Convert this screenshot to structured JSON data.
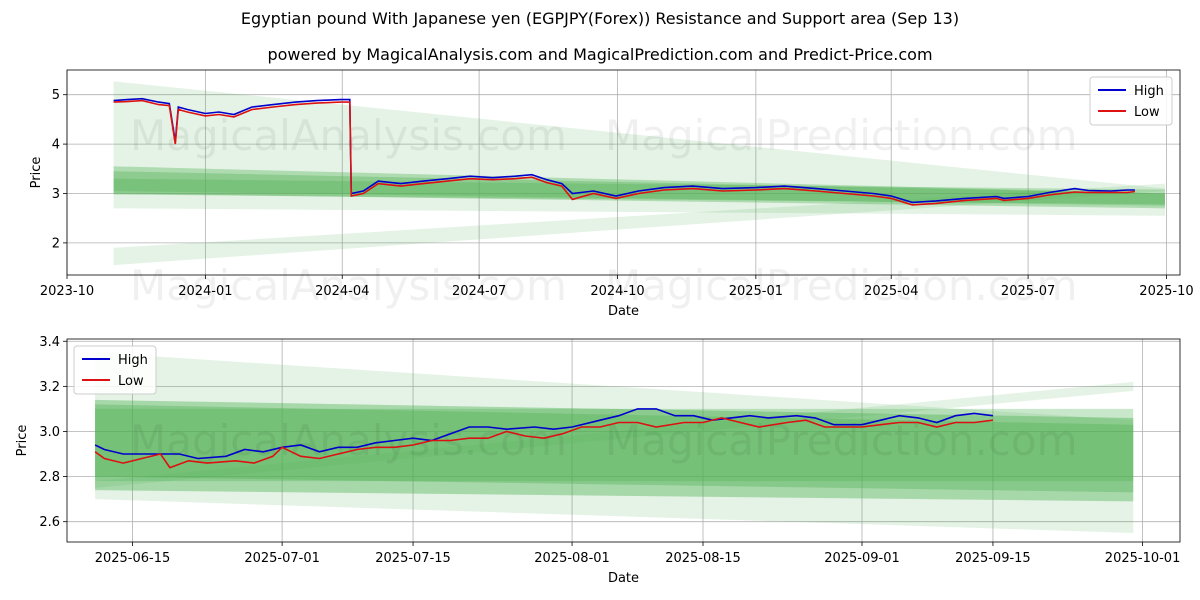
{
  "title": "Egyptian pound With Japanese yen (EGPJPY(Forex)) Resistance and Support area (Sep 13)",
  "subtitle": "powered by MagicalAnalysis.com and MagicalPrediction.com and Predict-Price.com",
  "watermarks": [
    "MagicalAnalysis.com",
    "MagicalPrediction.com"
  ],
  "colors": {
    "high": "#0000cc",
    "low": "#dd1111",
    "band": "#4caf50",
    "grid": "#b0b0b0"
  },
  "chart_data": [
    {
      "type": "line",
      "xlabel": "Date",
      "ylabel": "Price",
      "xlim": [
        "2023-10-01",
        "2025-10-10"
      ],
      "ylim": [
        1.35,
        5.5
      ],
      "xticks": [
        "2023-10",
        "2024-01",
        "2024-04",
        "2024-07",
        "2024-10",
        "2025-01",
        "2025-04",
        "2025-07",
        "2025-10"
      ],
      "yticks": [
        2,
        3,
        4,
        5
      ],
      "grid": true,
      "legend": "top-right",
      "series": [
        {
          "name": "High",
          "points": [
            [
              "2023-11-01",
              4.88
            ],
            [
              "2023-11-10",
              4.9
            ],
            [
              "2023-11-20",
              4.92
            ],
            [
              "2023-12-01",
              4.85
            ],
            [
              "2023-12-08",
              4.82
            ],
            [
              "2023-12-12",
              4.05
            ],
            [
              "2023-12-14",
              4.75
            ],
            [
              "2023-12-20",
              4.7
            ],
            [
              "2024-01-01",
              4.62
            ],
            [
              "2024-01-10",
              4.65
            ],
            [
              "2024-01-20",
              4.6
            ],
            [
              "2024-02-01",
              4.75
            ],
            [
              "2024-02-15",
              4.8
            ],
            [
              "2024-03-01",
              4.85
            ],
            [
              "2024-03-15",
              4.88
            ],
            [
              "2024-03-31",
              4.9
            ],
            [
              "2024-04-06",
              4.9
            ],
            [
              "2024-04-07",
              3.0
            ],
            [
              "2024-04-15",
              3.05
            ],
            [
              "2024-04-25",
              3.25
            ],
            [
              "2024-05-10",
              3.2
            ],
            [
              "2024-05-25",
              3.25
            ],
            [
              "2024-06-10",
              3.3
            ],
            [
              "2024-06-25",
              3.35
            ],
            [
              "2024-07-10",
              3.32
            ],
            [
              "2024-07-25",
              3.35
            ],
            [
              "2024-08-05",
              3.38
            ],
            [
              "2024-08-15",
              3.28
            ],
            [
              "2024-08-25",
              3.2
            ],
            [
              "2024-09-01",
              3.0
            ],
            [
              "2024-09-15",
              3.05
            ],
            [
              "2024-09-30",
              2.95
            ],
            [
              "2024-10-15",
              3.05
            ],
            [
              "2024-11-01",
              3.12
            ],
            [
              "2024-11-20",
              3.15
            ],
            [
              "2024-12-10",
              3.1
            ],
            [
              "2025-01-01",
              3.12
            ],
            [
              "2025-01-20",
              3.15
            ],
            [
              "2025-02-10",
              3.1
            ],
            [
              "2025-03-01",
              3.05
            ],
            [
              "2025-03-20",
              3.0
            ],
            [
              "2025-04-01",
              2.95
            ],
            [
              "2025-04-15",
              2.82
            ],
            [
              "2025-05-01",
              2.85
            ],
            [
              "2025-05-20",
              2.9
            ],
            [
              "2025-06-10",
              2.94
            ],
            [
              "2025-06-15",
              2.9
            ],
            [
              "2025-07-01",
              2.94
            ],
            [
              "2025-07-15",
              3.02
            ],
            [
              "2025-08-01",
              3.1
            ],
            [
              "2025-08-10",
              3.06
            ],
            [
              "2025-08-25",
              3.05
            ],
            [
              "2025-09-05",
              3.07
            ],
            [
              "2025-09-10",
              3.07
            ]
          ]
        },
        {
          "name": "Low",
          "points": [
            [
              "2023-11-01",
              4.85
            ],
            [
              "2023-11-10",
              4.86
            ],
            [
              "2023-11-20",
              4.88
            ],
            [
              "2023-12-01",
              4.8
            ],
            [
              "2023-12-08",
              4.78
            ],
            [
              "2023-12-12",
              4.0
            ],
            [
              "2023-12-14",
              4.7
            ],
            [
              "2023-12-20",
              4.65
            ],
            [
              "2024-01-01",
              4.57
            ],
            [
              "2024-01-10",
              4.6
            ],
            [
              "2024-01-20",
              4.55
            ],
            [
              "2024-02-01",
              4.7
            ],
            [
              "2024-02-15",
              4.75
            ],
            [
              "2024-03-01",
              4.8
            ],
            [
              "2024-03-15",
              4.83
            ],
            [
              "2024-03-31",
              4.85
            ],
            [
              "2024-04-06",
              4.85
            ],
            [
              "2024-04-07",
              2.95
            ],
            [
              "2024-04-15",
              3.0
            ],
            [
              "2024-04-25",
              3.2
            ],
            [
              "2024-05-10",
              3.15
            ],
            [
              "2024-05-25",
              3.2
            ],
            [
              "2024-06-10",
              3.25
            ],
            [
              "2024-06-25",
              3.3
            ],
            [
              "2024-07-10",
              3.28
            ],
            [
              "2024-07-25",
              3.3
            ],
            [
              "2024-08-05",
              3.33
            ],
            [
              "2024-08-15",
              3.22
            ],
            [
              "2024-08-25",
              3.15
            ],
            [
              "2024-09-01",
              2.88
            ],
            [
              "2024-09-15",
              3.0
            ],
            [
              "2024-09-30",
              2.9
            ],
            [
              "2024-10-15",
              3.0
            ],
            [
              "2024-11-01",
              3.07
            ],
            [
              "2024-11-20",
              3.1
            ],
            [
              "2024-12-10",
              3.05
            ],
            [
              "2025-01-01",
              3.07
            ],
            [
              "2025-01-20",
              3.1
            ],
            [
              "2025-02-10",
              3.05
            ],
            [
              "2025-03-01",
              3.0
            ],
            [
              "2025-03-20",
              2.95
            ],
            [
              "2025-04-01",
              2.9
            ],
            [
              "2025-04-15",
              2.77
            ],
            [
              "2025-05-01",
              2.8
            ],
            [
              "2025-05-20",
              2.86
            ],
            [
              "2025-06-10",
              2.9
            ],
            [
              "2025-06-15",
              2.86
            ],
            [
              "2025-07-01",
              2.9
            ],
            [
              "2025-07-15",
              2.97
            ],
            [
              "2025-08-01",
              3.03
            ],
            [
              "2025-08-10",
              3.02
            ],
            [
              "2025-08-25",
              3.02
            ],
            [
              "2025-09-05",
              3.02
            ],
            [
              "2025-09-10",
              3.04
            ]
          ]
        }
      ],
      "bands": [
        {
          "start": "2023-11-01",
          "end": "2025-09-30",
          "upper": [
            5.27,
            3.1
          ],
          "lower": [
            2.7,
            2.55
          ],
          "opacity": 0.15
        },
        {
          "start": "2023-11-01",
          "end": "2025-09-30",
          "upper": [
            1.9,
            3.2
          ],
          "lower": [
            1.55,
            3.05
          ],
          "opacity": 0.15
        },
        {
          "start": "2023-11-01",
          "end": "2025-09-30",
          "upper": [
            3.55,
            3.0
          ],
          "lower": [
            3.0,
            2.7
          ],
          "opacity": 0.35
        },
        {
          "start": "2023-11-01",
          "end": "2025-09-30",
          "upper": [
            3.45,
            3.0
          ],
          "lower": [
            2.98,
            2.78
          ],
          "opacity": 0.35
        },
        {
          "start": "2023-11-01",
          "end": "2025-09-30",
          "upper": [
            3.3,
            3.08
          ],
          "lower": [
            3.05,
            2.75
          ],
          "opacity": 0.3
        }
      ]
    },
    {
      "type": "line",
      "xlabel": "Date",
      "ylabel": "Price",
      "xlim": [
        "2025-06-08",
        "2025-10-05"
      ],
      "ylim": [
        2.51,
        3.41
      ],
      "xticks": [
        "2025-06-15",
        "2025-07-01",
        "2025-07-15",
        "2025-08-01",
        "2025-08-15",
        "2025-09-01",
        "2025-09-15",
        "2025-10-01"
      ],
      "yticks": [
        2.6,
        2.8,
        3.0,
        3.2,
        3.4
      ],
      "grid": true,
      "legend": "top-left",
      "series": [
        {
          "name": "High",
          "points": [
            [
              "2025-06-11",
              2.94
            ],
            [
              "2025-06-12",
              2.92
            ],
            [
              "2025-06-14",
              2.9
            ],
            [
              "2025-06-17",
              2.9
            ],
            [
              "2025-06-20",
              2.9
            ],
            [
              "2025-06-22",
              2.88
            ],
            [
              "2025-06-25",
              2.89
            ],
            [
              "2025-06-27",
              2.92
            ],
            [
              "2025-06-29",
              2.91
            ],
            [
              "2025-07-01",
              2.93
            ],
            [
              "2025-07-03",
              2.94
            ],
            [
              "2025-07-05",
              2.91
            ],
            [
              "2025-07-07",
              2.93
            ],
            [
              "2025-07-09",
              2.93
            ],
            [
              "2025-07-11",
              2.95
            ],
            [
              "2025-07-13",
              2.96
            ],
            [
              "2025-07-15",
              2.97
            ],
            [
              "2025-07-17",
              2.96
            ],
            [
              "2025-07-19",
              2.99
            ],
            [
              "2025-07-21",
              3.02
            ],
            [
              "2025-07-23",
              3.02
            ],
            [
              "2025-07-25",
              3.01
            ],
            [
              "2025-07-28",
              3.02
            ],
            [
              "2025-07-30",
              3.01
            ],
            [
              "2025-08-01",
              3.02
            ],
            [
              "2025-08-04",
              3.05
            ],
            [
              "2025-08-06",
              3.07
            ],
            [
              "2025-08-08",
              3.1
            ],
            [
              "2025-08-10",
              3.1
            ],
            [
              "2025-08-12",
              3.07
            ],
            [
              "2025-08-14",
              3.07
            ],
            [
              "2025-08-16",
              3.05
            ],
            [
              "2025-08-18",
              3.06
            ],
            [
              "2025-08-20",
              3.07
            ],
            [
              "2025-08-22",
              3.06
            ],
            [
              "2025-08-25",
              3.07
            ],
            [
              "2025-08-27",
              3.06
            ],
            [
              "2025-08-29",
              3.03
            ],
            [
              "2025-09-01",
              3.03
            ],
            [
              "2025-09-03",
              3.05
            ],
            [
              "2025-09-05",
              3.07
            ],
            [
              "2025-09-07",
              3.06
            ],
            [
              "2025-09-09",
              3.04
            ],
            [
              "2025-09-11",
              3.07
            ],
            [
              "2025-09-13",
              3.08
            ],
            [
              "2025-09-15",
              3.07
            ]
          ]
        },
        {
          "name": "Low",
          "points": [
            [
              "2025-06-11",
              2.91
            ],
            [
              "2025-06-12",
              2.88
            ],
            [
              "2025-06-14",
              2.86
            ],
            [
              "2025-06-16",
              2.88
            ],
            [
              "2025-06-18",
              2.9
            ],
            [
              "2025-06-19",
              2.84
            ],
            [
              "2025-06-21",
              2.87
            ],
            [
              "2025-06-23",
              2.86
            ],
            [
              "2025-06-26",
              2.87
            ],
            [
              "2025-06-28",
              2.86
            ],
            [
              "2025-06-30",
              2.89
            ],
            [
              "2025-07-01",
              2.93
            ],
            [
              "2025-07-03",
              2.89
            ],
            [
              "2025-07-05",
              2.88
            ],
            [
              "2025-07-07",
              2.9
            ],
            [
              "2025-07-09",
              2.92
            ],
            [
              "2025-07-11",
              2.93
            ],
            [
              "2025-07-13",
              2.93
            ],
            [
              "2025-07-15",
              2.94
            ],
            [
              "2025-07-17",
              2.96
            ],
            [
              "2025-07-19",
              2.96
            ],
            [
              "2025-07-21",
              2.97
            ],
            [
              "2025-07-23",
              2.97
            ],
            [
              "2025-07-25",
              3.0
            ],
            [
              "2025-07-27",
              2.98
            ],
            [
              "2025-07-29",
              2.97
            ],
            [
              "2025-07-31",
              2.99
            ],
            [
              "2025-08-02",
              3.02
            ],
            [
              "2025-08-04",
              3.02
            ],
            [
              "2025-08-06",
              3.04
            ],
            [
              "2025-08-08",
              3.04
            ],
            [
              "2025-08-10",
              3.02
            ],
            [
              "2025-08-13",
              3.04
            ],
            [
              "2025-08-15",
              3.04
            ],
            [
              "2025-08-17",
              3.06
            ],
            [
              "2025-08-19",
              3.04
            ],
            [
              "2025-08-21",
              3.02
            ],
            [
              "2025-08-24",
              3.04
            ],
            [
              "2025-08-26",
              3.05
            ],
            [
              "2025-08-28",
              3.02
            ],
            [
              "2025-08-30",
              3.02
            ],
            [
              "2025-09-01",
              3.02
            ],
            [
              "2025-09-03",
              3.03
            ],
            [
              "2025-09-05",
              3.04
            ],
            [
              "2025-09-07",
              3.04
            ],
            [
              "2025-09-09",
              3.02
            ],
            [
              "2025-09-11",
              3.04
            ],
            [
              "2025-09-13",
              3.04
            ],
            [
              "2025-09-15",
              3.05
            ]
          ]
        }
      ],
      "bands": [
        {
          "start": "2025-06-11",
          "end": "2025-09-30",
          "upper": [
            3.35,
            3.05
          ],
          "lower": [
            2.7,
            2.55
          ],
          "opacity": 0.15
        },
        {
          "start": "2025-06-11",
          "end": "2025-09-30",
          "upper": [
            2.78,
            3.22
          ],
          "lower": [
            2.75,
            3.18
          ],
          "opacity": 0.15
        },
        {
          "start": "2025-06-11",
          "end": "2025-09-30",
          "upper": [
            3.14,
            3.06
          ],
          "lower": [
            2.74,
            2.69
          ],
          "opacity": 0.4
        },
        {
          "start": "2025-06-11",
          "end": "2025-09-30",
          "upper": [
            3.12,
            3.03
          ],
          "lower": [
            2.8,
            2.73
          ],
          "opacity": 0.35
        },
        {
          "start": "2025-06-11",
          "end": "2025-09-30",
          "upper": [
            3.1,
            3.1
          ],
          "lower": [
            2.78,
            2.78
          ],
          "opacity": 0.3
        }
      ]
    }
  ]
}
